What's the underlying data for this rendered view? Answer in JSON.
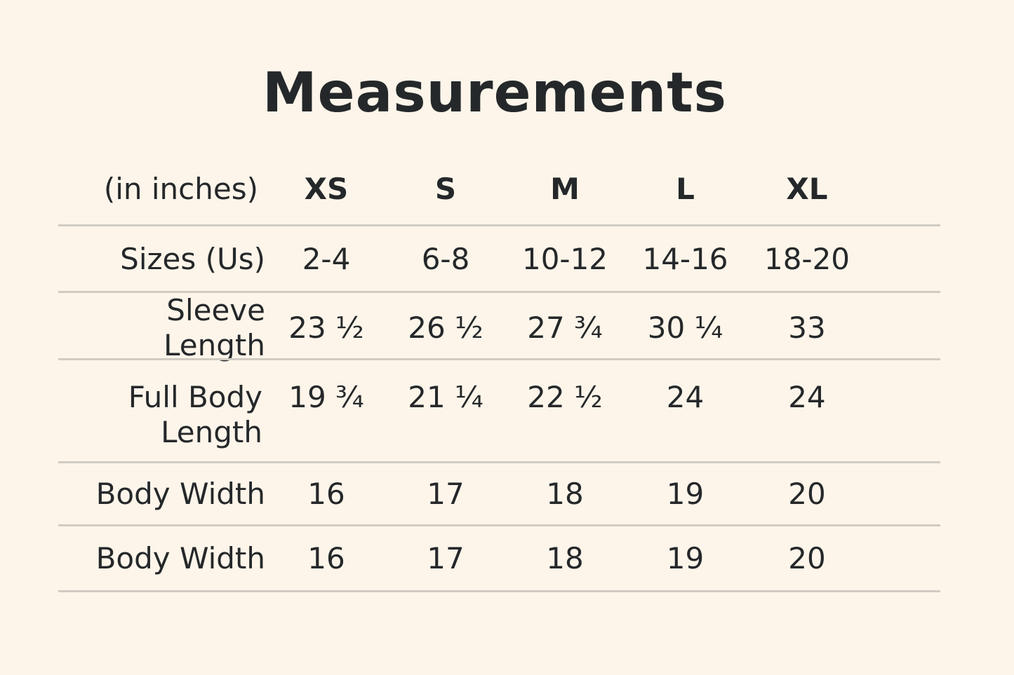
{
  "title": "Measurements",
  "table": {
    "unit_label": "(in inches)",
    "columns": [
      "XS",
      "S",
      "M",
      "L",
      "XL"
    ],
    "rows": [
      {
        "label": "Sizes (Us)",
        "values": [
          "2-4",
          "6-8",
          "10-12",
          "14-16",
          "18-20"
        ]
      },
      {
        "label": "Sleeve Length",
        "values": [
          "23 ½",
          "26 ½",
          "27 ¾",
          "30 ¼",
          "33"
        ]
      },
      {
        "label": "Full Body Length",
        "label_lines": [
          "Full Body",
          "Length"
        ],
        "values": [
          "19 ¾",
          "21 ¼",
          "22 ½",
          "24",
          "24"
        ]
      },
      {
        "label": "Body Width",
        "values": [
          "16",
          "17",
          "18",
          "19",
          "20"
        ]
      },
      {
        "label": "Body Width",
        "values": [
          "16",
          "17",
          "18",
          "19",
          "20"
        ]
      }
    ]
  },
  "colors": {
    "background": "#fdf5ea",
    "text": "#25282a",
    "rule": "#d0cbc3"
  }
}
